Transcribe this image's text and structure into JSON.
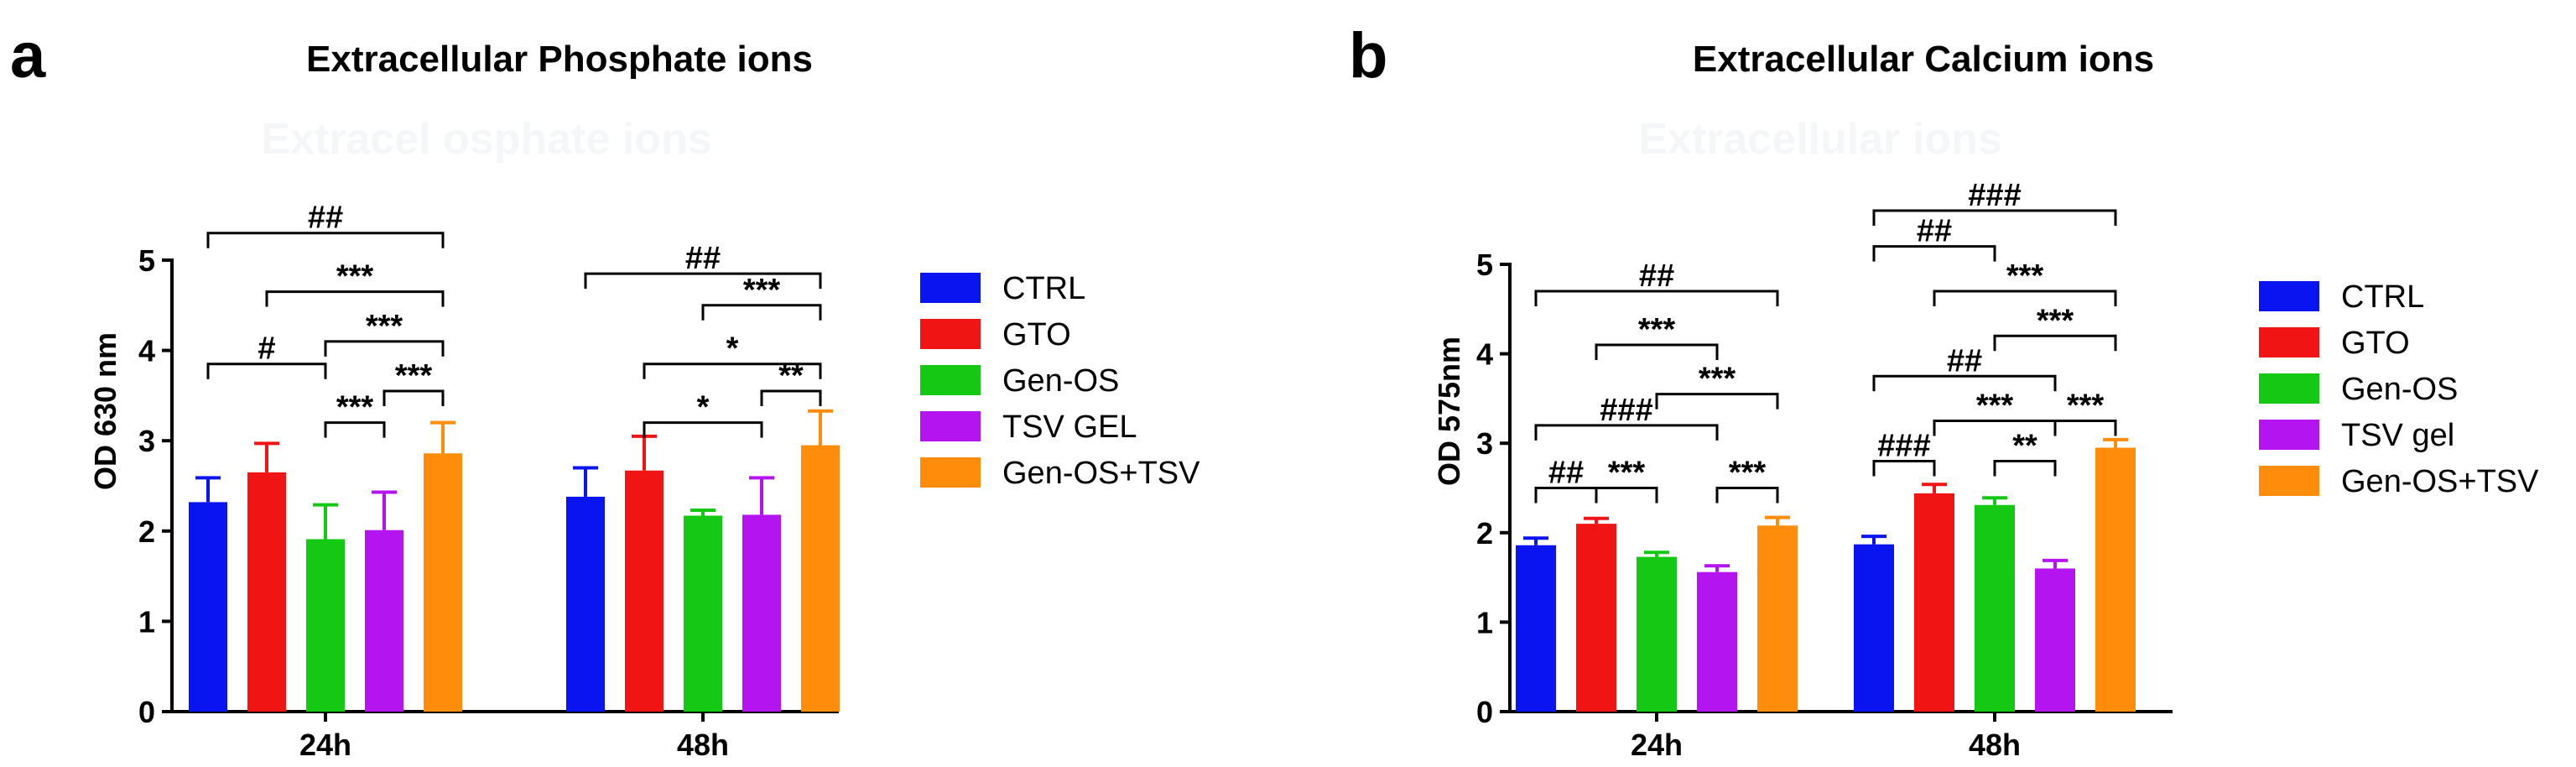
{
  "figure": {
    "panels": [
      {
        "letter": "a",
        "watermark": "Extracel    osphate ions"
      },
      {
        "letter": "b",
        "watermark": "Extracellular    ions"
      }
    ]
  },
  "colors": {
    "CTRL": "#0a14f0",
    "GTO": "#f01414",
    "Gen-OS": "#14c814",
    "TSV": "#b414f0",
    "Gen-OS+TSV": "#ff8c0a"
  },
  "chart_data": [
    {
      "type": "bar",
      "title": "Extracellular Phosphate ions",
      "xlabel": "",
      "ylabel": "OD 630 nm",
      "ylim": [
        0,
        5
      ],
      "yticks": [
        0,
        1,
        2,
        3,
        4,
        5
      ],
      "categories": [
        "24h",
        "48h"
      ],
      "legend_position": "right",
      "series": [
        {
          "name": "CTRL",
          "values": [
            2.32,
            2.38
          ],
          "errors": [
            0.27,
            0.32
          ]
        },
        {
          "name": "GTO",
          "values": [
            2.65,
            2.67
          ],
          "errors": [
            0.32,
            0.38
          ]
        },
        {
          "name": "Gen-OS",
          "values": [
            1.91,
            2.17
          ],
          "errors": [
            0.38,
            0.06
          ]
        },
        {
          "name": "TSV GEL",
          "values": [
            2.01,
            2.18
          ],
          "errors": [
            0.42,
            0.41
          ]
        },
        {
          "name": "Gen-OS+TSV",
          "values": [
            2.86,
            2.95
          ],
          "errors": [
            0.34,
            0.38
          ]
        }
      ],
      "annotations": [
        {
          "label": "***",
          "group": 0,
          "from": 2,
          "to": 3,
          "level": 3.2
        },
        {
          "label": "***",
          "group": 0,
          "from": 3,
          "to": 4,
          "level": 3.55
        },
        {
          "label": "#",
          "group": 0,
          "from": 0,
          "to": 2,
          "level": 3.85
        },
        {
          "label": "***",
          "group": 0,
          "from": 2,
          "to": 4,
          "level": 4.1
        },
        {
          "label": "***",
          "group": 0,
          "from": 1,
          "to": 4,
          "level": 4.65
        },
        {
          "label": "##",
          "group": 0,
          "from": 0,
          "to": 4,
          "level": 5.3
        },
        {
          "label": "*",
          "group": 1,
          "from": 1,
          "to": 3,
          "level": 3.2
        },
        {
          "label": "**",
          "group": 1,
          "from": 3,
          "to": 4,
          "level": 3.55
        },
        {
          "label": "*",
          "group": 1,
          "from": 1,
          "to": 4,
          "level": 3.85
        },
        {
          "label": "***",
          "group": 1,
          "from": 2,
          "to": 4,
          "level": 4.5
        },
        {
          "label": "##",
          "group": 1,
          "from": 0,
          "to": 4,
          "level": 4.85
        }
      ]
    },
    {
      "type": "bar",
      "title": "Extracellular Calcium ions",
      "xlabel": "",
      "ylabel": "OD 575nm",
      "ylim": [
        0,
        5
      ],
      "yticks": [
        0,
        1,
        2,
        3,
        4,
        5
      ],
      "categories": [
        "24h",
        "48h"
      ],
      "legend_position": "right",
      "series": [
        {
          "name": "CTRL",
          "values": [
            1.86,
            1.87
          ],
          "errors": [
            0.08,
            0.09
          ]
        },
        {
          "name": "GTO",
          "values": [
            2.1,
            2.44
          ],
          "errors": [
            0.06,
            0.1
          ]
        },
        {
          "name": "Gen-OS",
          "values": [
            1.73,
            2.31
          ],
          "errors": [
            0.05,
            0.08
          ]
        },
        {
          "name": "TSV gel",
          "values": [
            1.56,
            1.6
          ],
          "errors": [
            0.07,
            0.09
          ]
        },
        {
          "name": "Gen-OS+TSV",
          "values": [
            2.08,
            2.95
          ],
          "errors": [
            0.09,
            0.09
          ]
        }
      ],
      "annotations": [
        {
          "label": "##",
          "group": 0,
          "from": 0,
          "to": 1,
          "level": 2.5
        },
        {
          "label": "***",
          "group": 0,
          "from": 1,
          "to": 2,
          "level": 2.5
        },
        {
          "label": "***",
          "group": 0,
          "from": 3,
          "to": 4,
          "level": 2.5
        },
        {
          "label": "###",
          "group": 0,
          "from": 0,
          "to": 3,
          "level": 3.2
        },
        {
          "label": "***",
          "group": 0,
          "from": 2,
          "to": 4,
          "level": 3.55
        },
        {
          "label": "***",
          "group": 0,
          "from": 1,
          "to": 3,
          "level": 4.1
        },
        {
          "label": "##",
          "group": 0,
          "from": 0,
          "to": 4,
          "level": 4.7
        },
        {
          "label": "###",
          "group": 1,
          "from": 0,
          "to": 1,
          "level": 2.8
        },
        {
          "label": "**",
          "group": 1,
          "from": 2,
          "to": 3,
          "level": 2.8
        },
        {
          "label": "***",
          "group": 1,
          "from": 3,
          "to": 4,
          "level": 3.25
        },
        {
          "label": "***",
          "group": 1,
          "from": 1,
          "to": 3,
          "level": 3.25
        },
        {
          "label": "##",
          "group": 1,
          "from": 0,
          "to": 3,
          "level": 3.75
        },
        {
          "label": "***",
          "group": 1,
          "from": 2,
          "to": 4,
          "level": 4.2
        },
        {
          "label": "***",
          "group": 1,
          "from": 1,
          "to": 4,
          "level": 4.7
        },
        {
          "label": "##",
          "group": 1,
          "from": 0,
          "to": 2,
          "level": 5.2
        },
        {
          "label": "###",
          "group": 1,
          "from": 0,
          "to": 4,
          "level": 5.6
        }
      ]
    }
  ]
}
